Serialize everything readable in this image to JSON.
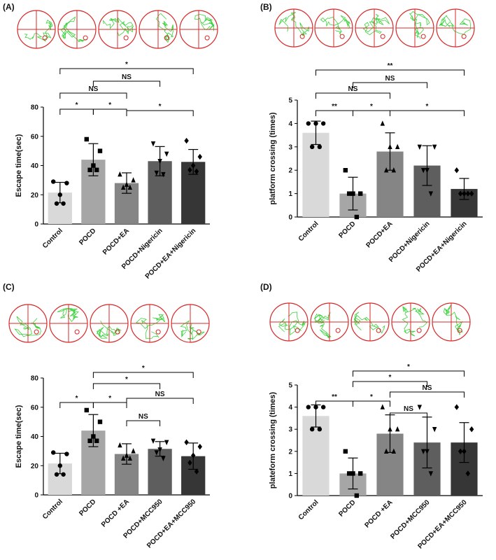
{
  "chart_data": [
    {
      "type": "bar",
      "panel": "(A)",
      "ylabel": "Escape time(sec)",
      "categories": [
        "Control",
        "POCD",
        "POCD+EA",
        "POCD+Nigericin",
        "POCD+EA+Nigericin"
      ],
      "values": [
        21.5,
        44,
        28,
        43,
        42.5
      ],
      "errors": [
        7,
        11,
        7,
        10,
        8.5
      ],
      "points": [
        [
          29,
          28,
          20,
          14,
          14
        ],
        [
          58,
          50,
          40,
          37,
          37
        ],
        [
          34,
          30,
          27,
          25,
          25
        ],
        [
          55,
          48,
          43,
          35,
          34
        ],
        [
          57,
          46,
          40,
          37,
          36
        ]
      ],
      "colors": [
        "#d9d9d9",
        "#a6a6a6",
        "#858585",
        "#5e5e5e",
        "#363636"
      ],
      "ylim": [
        0,
        80
      ],
      "yticks": [
        0,
        20,
        40,
        60,
        80
      ],
      "annotations": [
        "*",
        "NS",
        "NS",
        "*",
        "*",
        "*"
      ]
    },
    {
      "type": "bar",
      "panel": "(B)",
      "ylabel": "platform crossing (times)",
      "categories": [
        "Control",
        "POCD",
        "POCD+EA",
        "POCD+Nigericin",
        "POCD+EA+Nigericin"
      ],
      "values": [
        3.6,
        1.0,
        2.8,
        2.2,
        1.2
      ],
      "errors": [
        0.5,
        0.7,
        0.8,
        0.85,
        0.45
      ],
      "points": [
        [
          4,
          4,
          4,
          3,
          3
        ],
        [
          2,
          1,
          1,
          1,
          0
        ],
        [
          4,
          3,
          3,
          2,
          2
        ],
        [
          3,
          3,
          2,
          2,
          1
        ],
        [
          2,
          1,
          1,
          1,
          1
        ]
      ],
      "colors": [
        "#d9d9d9",
        "#a6a6a6",
        "#858585",
        "#5e5e5e",
        "#363636"
      ],
      "ylim": [
        0,
        5
      ],
      "yticks": [
        0,
        1,
        2,
        3,
        4,
        5
      ],
      "annotations": [
        "**",
        "NS",
        "NS",
        "**",
        "*",
        "*"
      ]
    },
    {
      "type": "bar",
      "panel": "(C)",
      "ylabel": "Escape time(sec)",
      "categories": [
        "Control",
        "POCD",
        "POCD +EA",
        "POCD+MCC950",
        "POCD+EA+MCC950"
      ],
      "values": [
        21.5,
        44,
        28,
        31.5,
        26.5
      ],
      "errors": [
        7,
        11,
        7,
        5,
        9
      ],
      "points": [
        [
          29,
          28,
          20,
          14,
          14
        ],
        [
          58,
          50,
          40,
          37,
          37
        ],
        [
          34,
          30,
          27,
          25,
          25
        ],
        [
          37,
          36,
          31,
          29,
          25
        ],
        [
          36,
          33,
          27,
          22,
          16
        ]
      ],
      "colors": [
        "#d9d9d9",
        "#a6a6a6",
        "#858585",
        "#5e5e5e",
        "#363636"
      ],
      "ylim": [
        0,
        80
      ],
      "yticks": [
        0,
        20,
        40,
        60,
        80
      ],
      "annotations": [
        "*",
        "*",
        "NS",
        "*",
        "*",
        "NS"
      ]
    },
    {
      "type": "bar",
      "panel": "(D)",
      "ylabel": "plateform crossing (times)",
      "categories": [
        "Control",
        "POCD",
        "POCD +EA",
        "POCD+MCC950",
        "POCD+EA+MCC950"
      ],
      "values": [
        3.6,
        1.0,
        2.8,
        2.4,
        2.4
      ],
      "errors": [
        0.5,
        0.7,
        0.85,
        1.15,
        0.9
      ],
      "points": [
        [
          4,
          4,
          4,
          3,
          3
        ],
        [
          2,
          1,
          1,
          1,
          0
        ],
        [
          4,
          3,
          3,
          2,
          2
        ],
        [
          4,
          3,
          2,
          2,
          1
        ],
        [
          4,
          3,
          2,
          2,
          1
        ]
      ],
      "colors": [
        "#d9d9d9",
        "#a6a6a6",
        "#858585",
        "#5e5e5e",
        "#363636"
      ],
      "ylim": [
        0,
        5
      ],
      "yticks": [
        0,
        1,
        2,
        3,
        4,
        5
      ],
      "annotations": [
        "*",
        "*",
        "NS",
        "**",
        "*",
        "NS"
      ]
    }
  ]
}
